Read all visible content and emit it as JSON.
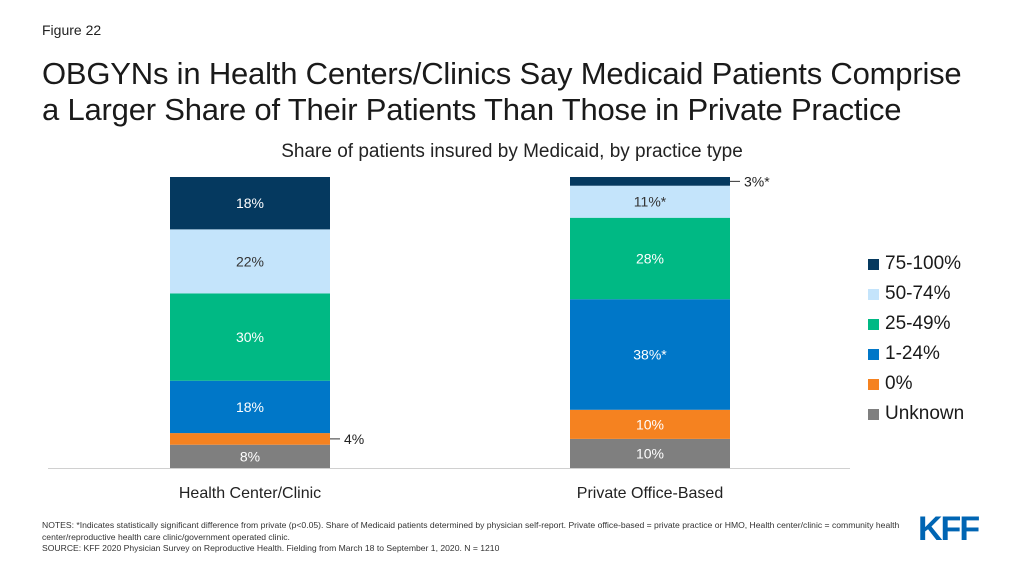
{
  "figure_label": "Figure 22",
  "title": {
    "line1": "OBGYNs in Health Centers/Clinics Say Medicaid Patients Comprise",
    "line2": "a Larger Share of Their Patients Than Those in Private Practice"
  },
  "notes": {
    "notes_text": "NOTES: *Indicates statistically significant difference from private (p<0.05). Share of Medicaid patients determined by physician self-report. Private office-based = private practice or HMO, Health center/clinic = community health center/reproductive health care clinic/government operated clinic.",
    "source_text": "SOURCE: KFF 2020 Physician Survey on Reproductive Health. Fielding from March 18 to September 1, 2020. N = 1210"
  },
  "logo_text": "KFF",
  "chart_data": {
    "type": "bar",
    "stacked": true,
    "title": "Share of patients insured by Medicaid, by practice type",
    "categories": [
      "Health Center/Clinic",
      "Private Office-Based"
    ],
    "series": [
      {
        "name": "Unknown",
        "color": "#7f7f7f",
        "values": [
          8,
          10
        ],
        "labels": [
          "8%",
          "10%"
        ],
        "label_color": "#ffffff"
      },
      {
        "name": "0%",
        "color": "#f58220",
        "values": [
          4,
          10
        ],
        "labels": [
          "4%",
          "10%"
        ],
        "label_color": "#ffffff"
      },
      {
        "name": "1-24%",
        "color": "#0077c8",
        "values": [
          18,
          38
        ],
        "labels": [
          "18%",
          "38%*"
        ],
        "label_color": "#ffffff"
      },
      {
        "name": "25-49%",
        "color": "#00b984",
        "values": [
          30,
          28
        ],
        "labels": [
          "30%",
          "28%"
        ],
        "label_color": "#ffffff"
      },
      {
        "name": "50-74%",
        "color": "#c4e4fb",
        "values": [
          22,
          11
        ],
        "labels": [
          "22%",
          "11%*"
        ],
        "label_color": "#333333"
      },
      {
        "name": "75-100%",
        "color": "#05395f",
        "values": [
          18,
          3
        ],
        "labels": [
          "18%",
          "3%*"
        ],
        "label_color": "#ffffff"
      }
    ],
    "legend_order": [
      "75-100%",
      "50-74%",
      "25-49%",
      "1-24%",
      "0%",
      "Unknown"
    ],
    "legend_position": "right",
    "ylim": [
      0,
      100
    ],
    "grid": false
  }
}
